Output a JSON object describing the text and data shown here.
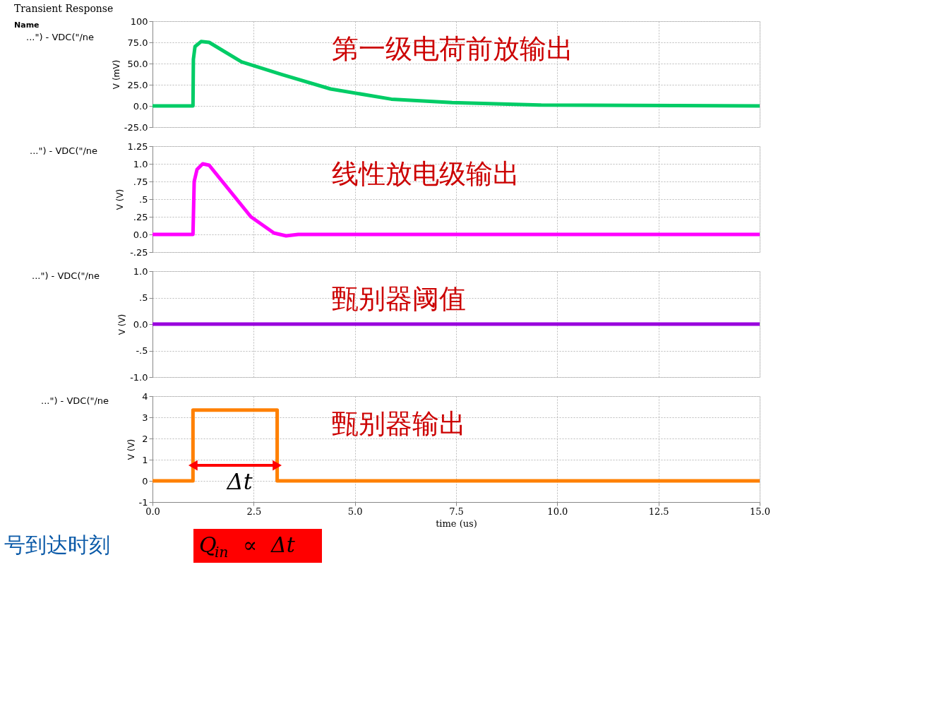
{
  "chart_data": [
    {
      "type": "line",
      "title": "Transient Response",
      "legend_title": "Name",
      "ylabel": "V (mV)",
      "xlim": [
        0,
        15
      ],
      "xticks": [
        0,
        2.5,
        5,
        7.5,
        10,
        12.5,
        15
      ],
      "ylim": [
        -25,
        100
      ],
      "yticks": [
        100,
        {
          "value": 75,
          "label": "75.0"
        },
        {
          "value": 50,
          "label": "50.0"
        },
        {
          "value": 25,
          "label": "25.0"
        },
        {
          "value": 0,
          "label": "0.0"
        },
        {
          "value": -25,
          "label": "-25.0"
        }
      ],
      "grid": true,
      "legend": "left",
      "tick_labels": "y",
      "series": [
        {
          "name": "...\") -  VDC(\"/ne",
          "color": "#00cc66",
          "x": [
            0,
            1.0,
            1.01,
            1.05,
            1.2,
            1.4,
            2.2,
            3.2,
            4.4,
            5.9,
            7.4,
            9.6,
            15
          ],
          "values": [
            0,
            0,
            55,
            70,
            76,
            75,
            52,
            37,
            20,
            8,
            4,
            1,
            0
          ]
        }
      ],
      "annotations": [
        "第一级电荷前放输出"
      ]
    },
    {
      "type": "line",
      "ylabel": "V (V)",
      "xlim": [
        0,
        15
      ],
      "xticks": [
        0,
        2.5,
        5,
        7.5,
        10,
        12.5,
        15
      ],
      "ylim": [
        -0.25,
        1.25
      ],
      "yticks": [
        1.25,
        {
          "value": 1,
          "label": "1.0"
        },
        {
          "value": 0.75,
          "label": ".75"
        },
        {
          "value": 0.5,
          "label": ".5"
        },
        {
          "value": 0.25,
          "label": ".25"
        },
        {
          "value": 0,
          "label": "0.0"
        },
        {
          "value": -0.25,
          "label": "-.25"
        }
      ],
      "grid": true,
      "legend": "left",
      "tick_labels": "y",
      "series": [
        {
          "name": "...\") -  VDC(\"/ne",
          "color": "#ff00ff",
          "x": [
            0,
            1.0,
            1.03,
            1.1,
            1.24,
            1.4,
            2.43,
            3.0,
            3.3,
            3.6,
            15
          ],
          "values": [
            0,
            0,
            0.75,
            0.92,
            1.0,
            0.98,
            0.25,
            0.02,
            -0.02,
            0,
            0
          ]
        }
      ],
      "annotations": [
        "线性放电级输出"
      ]
    },
    {
      "type": "line",
      "ylabel": "V (V)",
      "xlim": [
        0,
        15
      ],
      "xticks": [
        0,
        2.5,
        5,
        7.5,
        10,
        12.5,
        15
      ],
      "ylim": [
        -1,
        1
      ],
      "yticks": [
        {
          "value": 1,
          "label": "1.0"
        },
        {
          "value": 0.5,
          "label": ".5"
        },
        {
          "value": 0,
          "label": "0.0"
        },
        {
          "value": -0.5,
          "label": "-.5"
        },
        {
          "value": -1,
          "label": "-1.0"
        }
      ],
      "grid": true,
      "legend": "left",
      "tick_labels": "y",
      "series": [
        {
          "name": "...\") -  VDC(\"/ne",
          "color": "#9900dd",
          "x": [
            0,
            15
          ],
          "values": [
            0,
            0
          ]
        }
      ],
      "annotations": [
        "甄别器阈值"
      ]
    },
    {
      "type": "line",
      "ylabel": "V (V)",
      "xlabel": "time (us)",
      "xlim": [
        0,
        15
      ],
      "xticks": [
        {
          "value": 0,
          "label": "0.0"
        },
        2.5,
        {
          "value": 5,
          "label": "5.0"
        },
        7.5,
        {
          "value": 10,
          "label": "10.0"
        },
        12.5,
        {
          "value": 15,
          "label": "15.0"
        }
      ],
      "ylim": [
        -1,
        4
      ],
      "yticks": [
        4,
        3,
        2,
        1,
        0,
        -1
      ],
      "grid": true,
      "legend": "left",
      "series": [
        {
          "name": "...\") -  VDC(\"/ne",
          "color": "#ff8000",
          "x": [
            0,
            1.0,
            1.0,
            3.08,
            3.08,
            15
          ],
          "values": [
            0,
            0,
            3.34,
            3.34,
            0,
            0
          ]
        }
      ],
      "annotations": [
        "甄别器输出",
        {
          "text": "Δt",
          "x": 3.08,
          "y": 0.73
        },
        "Q$_{in}$ ∝ Δt",
        "号到达时刻"
      ]
    }
  ]
}
